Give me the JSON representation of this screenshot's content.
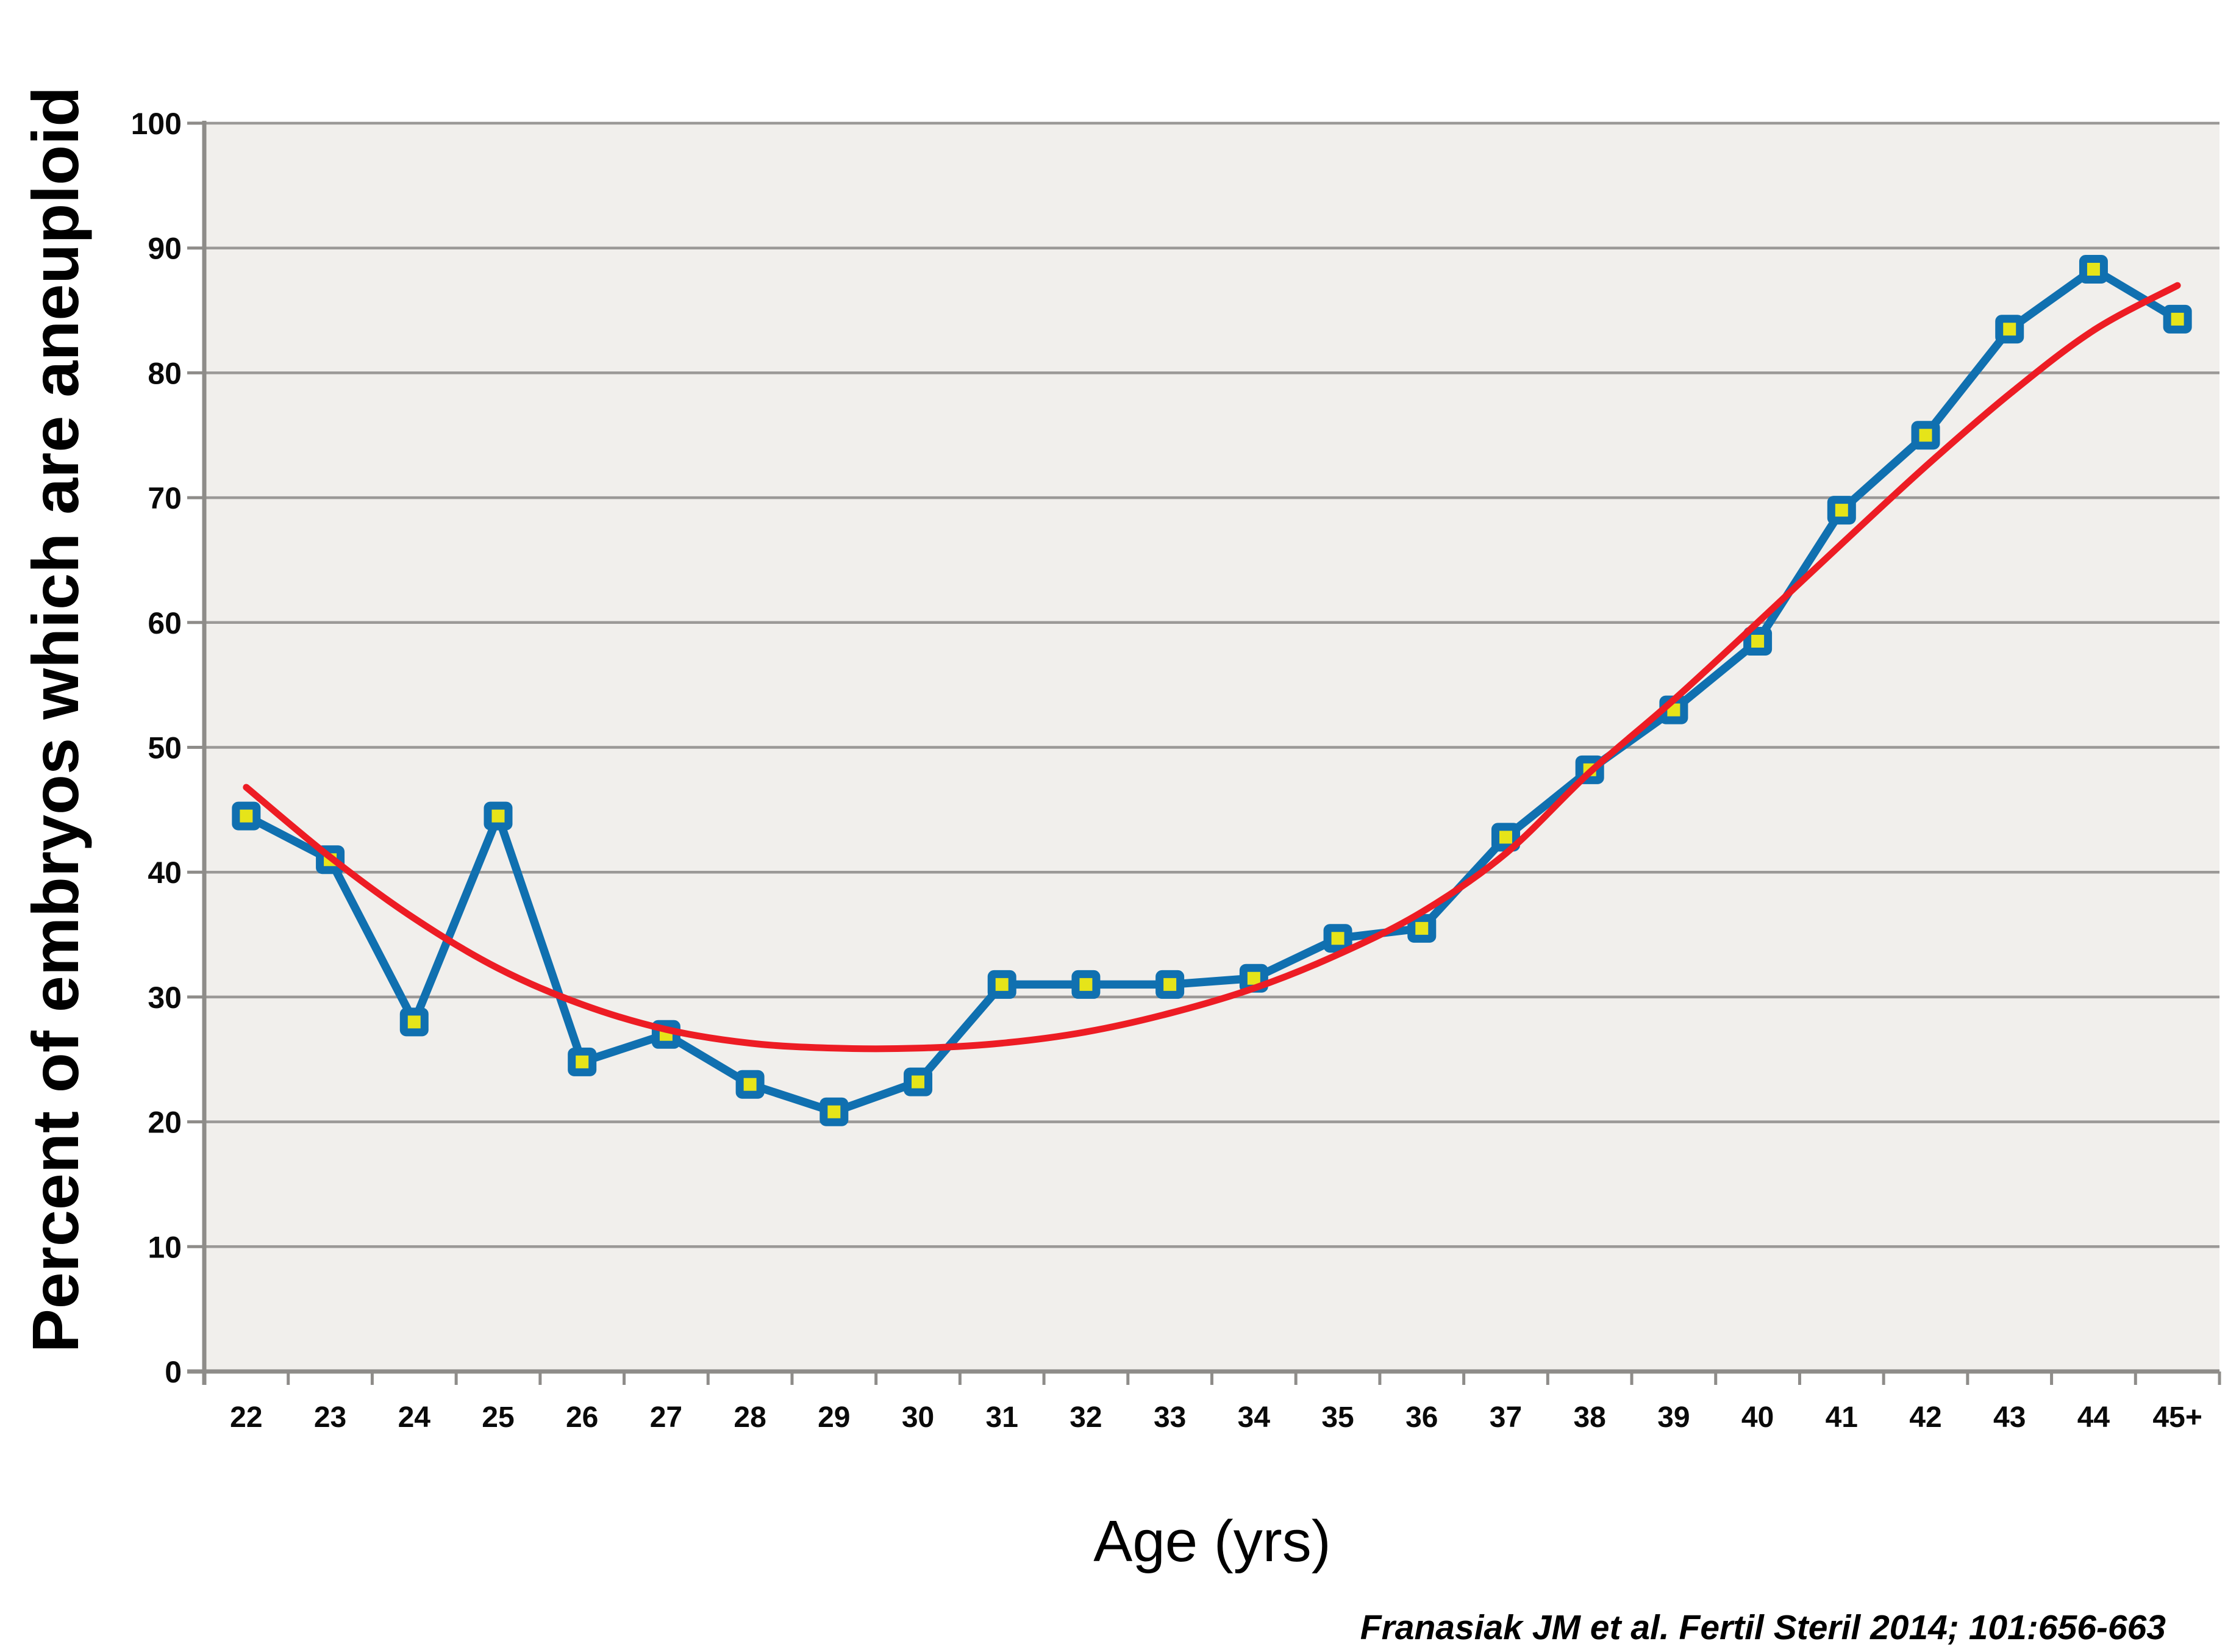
{
  "figure": {
    "y_axis_title": "Percent of embryos which are aneuploid",
    "x_axis_title": "Age (yrs)",
    "citation": "Franasiak JM et al. Fertil Steril 2014; 101:656-663"
  },
  "chart_data": {
    "type": "line",
    "title": "",
    "xlabel": "Age (yrs)",
    "ylabel": "Percent of embryos which are aneuploid",
    "ylim": [
      0,
      100
    ],
    "y_tick_step": 10,
    "y_tick_labels": [
      "0",
      "10",
      "20",
      "30",
      "40",
      "50",
      "60",
      "70",
      "80",
      "90",
      "100"
    ],
    "categories": [
      "22",
      "23",
      "24",
      "25",
      "26",
      "27",
      "28",
      "29",
      "30",
      "31",
      "32",
      "33",
      "34",
      "35",
      "36",
      "37",
      "38",
      "39",
      "40",
      "41",
      "42",
      "43",
      "44",
      "45+"
    ],
    "grid": true,
    "legend_position": "none",
    "plot_background": "#f1efec",
    "gridline_color": "#9b9997",
    "axis_color": "#8e8c89",
    "series": [
      {
        "name": "observed-aneuploidy-rate",
        "style": "line-with-square-markers",
        "color": "#1070b0",
        "marker_fill": "#e6e419",
        "marker_border": "#1070b0",
        "values": [
          44.5,
          41.0,
          28.0,
          44.5,
          24.8,
          27.0,
          23.0,
          20.8,
          23.2,
          31.0,
          31.0,
          31.0,
          31.5,
          34.7,
          35.5,
          42.8,
          48.2,
          53.0,
          58.5,
          69.0,
          75.0,
          83.5,
          88.3,
          84.3
        ]
      },
      {
        "name": "polynomial-trendline",
        "style": "smooth-line",
        "color": "#ed1c24",
        "values": [
          46.8,
          41.2,
          36.3,
          32.3,
          29.4,
          27.4,
          26.3,
          25.9,
          25.9,
          26.3,
          27.2,
          28.7,
          30.7,
          33.4,
          36.8,
          41.5,
          48.0,
          53.8,
          60.0,
          66.3,
          72.5,
          78.3,
          83.4,
          87.0
        ]
      }
    ]
  }
}
